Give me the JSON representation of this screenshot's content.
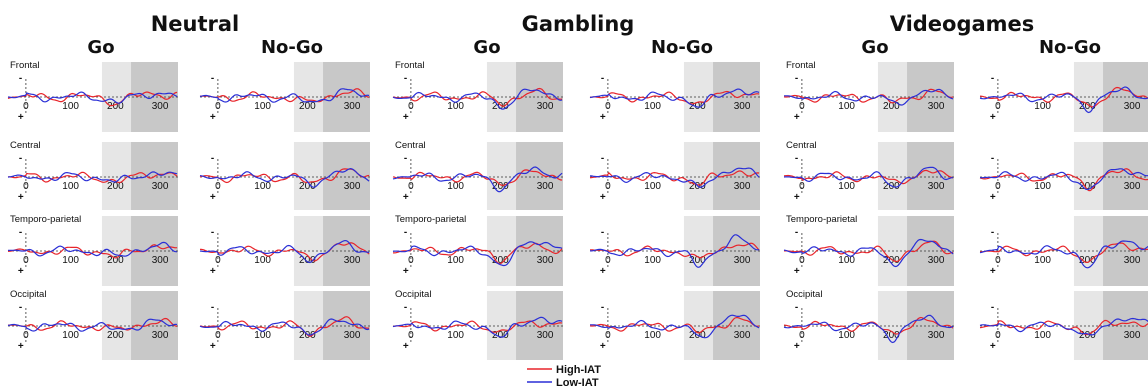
{
  "chart_data": {
    "type": "line",
    "conditions": [
      {
        "title": "Neutral",
        "panels": [
          {
            "title": "Go"
          },
          {
            "title": "No-Go"
          }
        ]
      },
      {
        "title": "Gambling",
        "panels": [
          {
            "title": "Go"
          },
          {
            "title": "No-Go"
          }
        ]
      },
      {
        "title": "Videogames",
        "panels": [
          {
            "title": "Go"
          },
          {
            "title": "No-Go"
          }
        ]
      }
    ],
    "regions": [
      "Frontal",
      "Central",
      "Temporo-parietal",
      "Occipital"
    ],
    "x_ticks": [
      "0",
      "100",
      "200",
      "300"
    ],
    "xlim": [
      -40,
      340
    ],
    "y_polarity": {
      "negative": "-",
      "positive": "+"
    },
    "shaded_windows": [
      {
        "start": 170,
        "end": 235,
        "color": "#e6e6e6"
      },
      {
        "start": 235,
        "end": 340,
        "color": "#c8c8c8"
      }
    ],
    "legend": [
      {
        "name": "High-IAT",
        "color": "#e8252b"
      },
      {
        "name": "Low-IAT",
        "color": "#2a2fd6"
      }
    ]
  }
}
